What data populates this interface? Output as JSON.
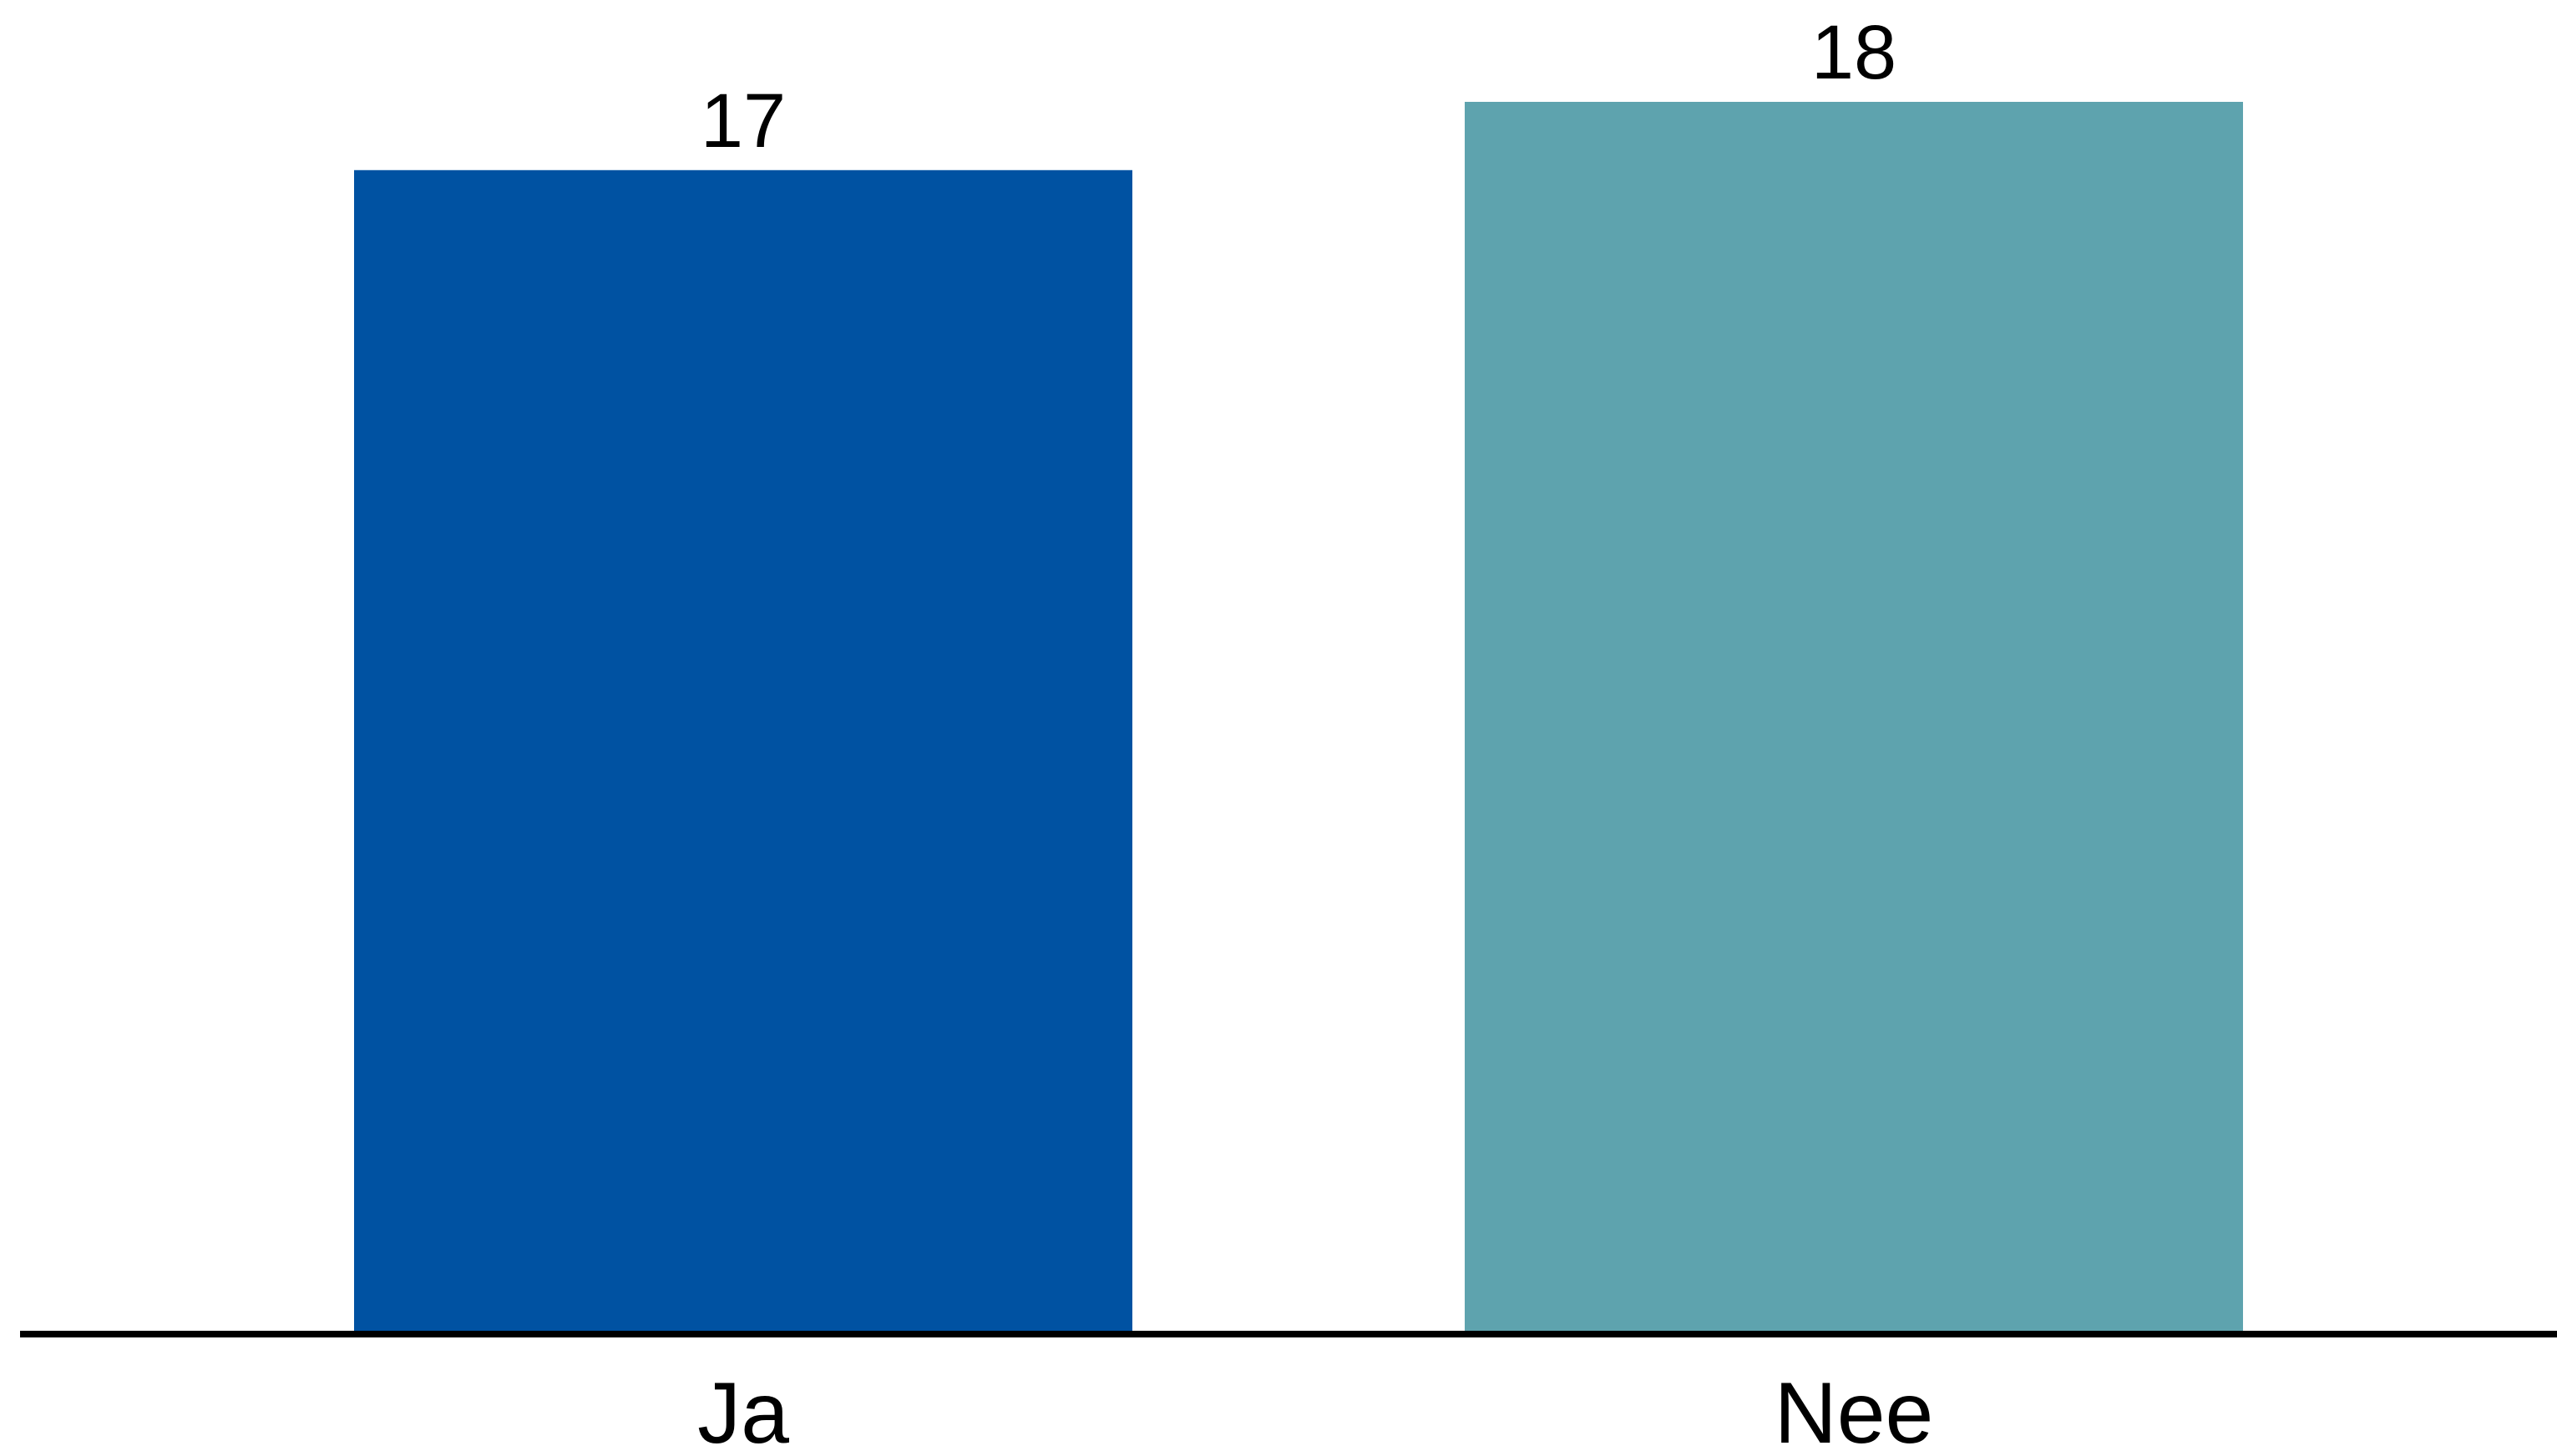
{
  "chart_data": {
    "type": "bar",
    "categories": [
      "Ja",
      "Nee"
    ],
    "values": [
      17,
      18
    ],
    "data_labels": [
      "17",
      "18"
    ],
    "colors": [
      "#0052A2",
      "#5EA3AE"
    ],
    "ylim": [
      0,
      18
    ],
    "grid": false,
    "legend": "none",
    "xlabel": "",
    "ylabel": "",
    "title": ""
  }
}
